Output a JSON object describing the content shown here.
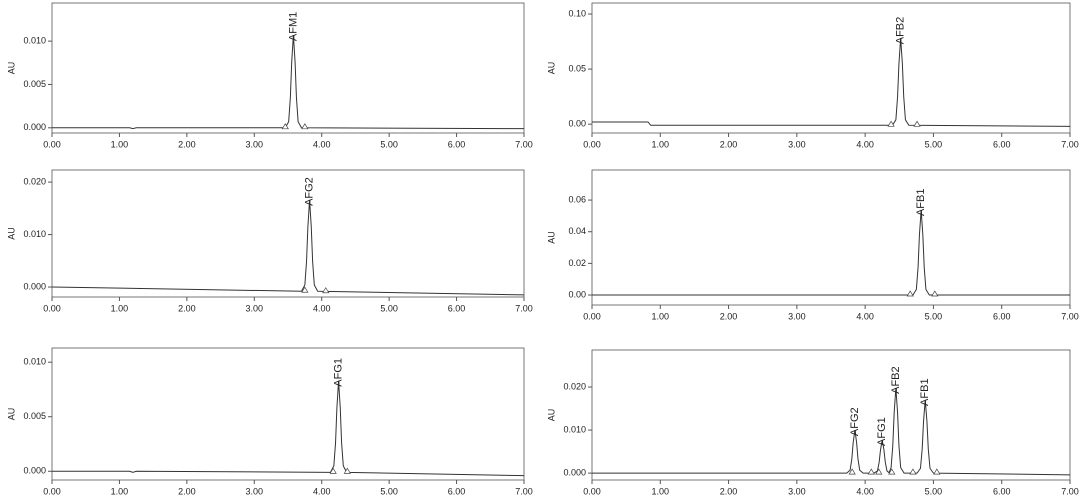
{
  "chart_data": [
    {
      "type": "line",
      "ylabel": "AU",
      "color": "#333333",
      "x": [
        0,
        1.15,
        1.2,
        1.25,
        3.46,
        3.51,
        3.535,
        3.555,
        3.58,
        3.605,
        3.625,
        3.65,
        3.7,
        7
      ],
      "values": [
        0,
        0,
        -0.0001,
        0,
        0,
        0.0007,
        0.0035,
        0.0076,
        0.0107,
        0.0076,
        0.0035,
        0.0007,
        0,
        -0.0001
      ],
      "xlim": [
        0,
        7
      ],
      "ylim": [
        -0.0006,
        0.0144
      ],
      "xticks": [
        {
          "value": 0,
          "label": "0.00"
        },
        {
          "value": 1,
          "label": "1.00"
        },
        {
          "value": 2,
          "label": "2.00"
        },
        {
          "value": 3,
          "label": "3.00"
        },
        {
          "value": 4,
          "label": "4.00"
        },
        {
          "value": 5,
          "label": "5.00"
        },
        {
          "value": 6,
          "label": "6.00"
        },
        {
          "value": 7,
          "label": "7.00"
        }
      ],
      "yticks": [
        {
          "value": 0,
          "label": "0.000"
        },
        {
          "value": 0.005,
          "label": "0.005"
        },
        {
          "value": 0.01,
          "label": "0.010"
        }
      ],
      "annotations": [
        {
          "text": "AFM1",
          "x": 3.58,
          "y": 0.0107
        }
      ],
      "integration_marks": [
        {
          "x": 3.46,
          "y": 0
        },
        {
          "x": 3.75,
          "y": 0
        }
      ]
    },
    {
      "type": "line",
      "ylabel": "AU",
      "color": "#333333",
      "x": [
        0,
        3.7,
        3.75,
        3.775,
        3.795,
        3.82,
        3.845,
        3.865,
        3.89,
        3.94,
        7
      ],
      "values": [
        0,
        -0.0008,
        0.0004,
        0.0049,
        0.0115,
        0.0166,
        0.0115,
        0.0049,
        0.0004,
        -0.0008,
        -0.0015
      ],
      "xlim": [
        0,
        7
      ],
      "ylim": [
        -0.0019,
        0.0223
      ],
      "xticks": [
        {
          "value": 0,
          "label": "0.00"
        },
        {
          "value": 1,
          "label": "1.00"
        },
        {
          "value": 2,
          "label": "2.00"
        },
        {
          "value": 3,
          "label": "3.00"
        },
        {
          "value": 4,
          "label": "4.00"
        },
        {
          "value": 5,
          "label": "5.00"
        },
        {
          "value": 6,
          "label": "6.00"
        },
        {
          "value": 7,
          "label": "7.00"
        }
      ],
      "yticks": [
        {
          "value": 0,
          "label": "0.000"
        },
        {
          "value": 0.01,
          "label": "0.010"
        },
        {
          "value": 0.02,
          "label": "0.020"
        }
      ],
      "annotations": [
        {
          "text": "AFG2",
          "x": 3.82,
          "y": 0.0166
        }
      ],
      "integration_marks": [
        {
          "x": 3.75,
          "y": -0.0008
        },
        {
          "x": 4.06,
          "y": -0.0009
        }
      ]
    },
    {
      "type": "line",
      "ylabel": "AU",
      "color": "#333333",
      "x": [
        0,
        1.15,
        1.2,
        1.25,
        4.13,
        4.18,
        4.205,
        4.225,
        4.25,
        4.275,
        4.295,
        4.32,
        4.37,
        7
      ],
      "values": [
        0,
        0,
        -0.0001,
        0,
        -0.0001,
        0.0005,
        0.0026,
        0.0058,
        0.0083,
        0.0058,
        0.0026,
        0.0005,
        -0.0001,
        -0.0004
      ],
      "xlim": [
        0,
        7
      ],
      "ylim": [
        -0.0008,
        0.0113
      ],
      "xticks": [
        {
          "value": 0,
          "label": "0.00"
        },
        {
          "value": 1,
          "label": "1.00"
        },
        {
          "value": 2,
          "label": "2.00"
        },
        {
          "value": 3,
          "label": "3.00"
        },
        {
          "value": 4,
          "label": "4.00"
        },
        {
          "value": 5,
          "label": "5.00"
        },
        {
          "value": 6,
          "label": "6.00"
        },
        {
          "value": 7,
          "label": "7.00"
        }
      ],
      "yticks": [
        {
          "value": 0,
          "label": "0.000"
        },
        {
          "value": 0.005,
          "label": "0.005"
        },
        {
          "value": 0.01,
          "label": "0.010"
        }
      ],
      "annotations": [
        {
          "text": "AFG1",
          "x": 4.25,
          "y": 0.0083
        }
      ],
      "integration_marks": [
        {
          "x": 4.17,
          "y": -0.0001
        },
        {
          "x": 4.38,
          "y": -0.0001
        }
      ]
    },
    {
      "type": "line",
      "ylabel": "AU",
      "color": "#333333",
      "x": [
        0,
        0.82,
        0.86,
        4.4,
        4.45,
        4.475,
        4.495,
        4.52,
        4.545,
        4.565,
        4.59,
        4.64,
        7
      ],
      "values": [
        0.002,
        0.002,
        -0.001,
        -0.001,
        0.004,
        0.025,
        0.055,
        0.078,
        0.055,
        0.025,
        0.004,
        -0.001,
        -0.002
      ],
      "xlim": [
        0,
        7
      ],
      "ylim": [
        -0.008,
        0.11
      ],
      "xticks": [
        {
          "value": 0,
          "label": "0.00"
        },
        {
          "value": 1,
          "label": "1.00"
        },
        {
          "value": 2,
          "label": "2.00"
        },
        {
          "value": 3,
          "label": "3.00"
        },
        {
          "value": 4,
          "label": "4.00"
        },
        {
          "value": 5,
          "label": "5.00"
        },
        {
          "value": 6,
          "label": "6.00"
        },
        {
          "value": 7,
          "label": "7.00"
        }
      ],
      "yticks": [
        {
          "value": 0,
          "label": "0.00"
        },
        {
          "value": 0.05,
          "label": "0.05"
        },
        {
          "value": 0.1,
          "label": "0.10"
        }
      ],
      "annotations": [
        {
          "text": "AFB2",
          "x": 4.52,
          "y": 0.078
        }
      ],
      "integration_marks": [
        {
          "x": 4.38,
          "y": -0.001
        },
        {
          "x": 4.76,
          "y": -0.001
        }
      ]
    },
    {
      "type": "line",
      "ylabel": "AU",
      "color": "#333333",
      "x": [
        0,
        4.7,
        4.75,
        4.775,
        4.795,
        4.82,
        4.845,
        4.865,
        4.89,
        4.94,
        7
      ],
      "values": [
        0,
        0,
        0.0035,
        0.0175,
        0.038,
        0.0537,
        0.038,
        0.0175,
        0.0035,
        0,
        0
      ],
      "xlim": [
        0,
        7
      ],
      "ylim": [
        -0.0063,
        0.079
      ],
      "xticks": [
        {
          "value": 0,
          "label": "0.00"
        },
        {
          "value": 1,
          "label": "1.00"
        },
        {
          "value": 2,
          "label": "2.00"
        },
        {
          "value": 3,
          "label": "3.00"
        },
        {
          "value": 4,
          "label": "4.00"
        },
        {
          "value": 5,
          "label": "5.00"
        },
        {
          "value": 6,
          "label": "6.00"
        },
        {
          "value": 7,
          "label": "7.00"
        }
      ],
      "yticks": [
        {
          "value": 0,
          "label": "0.00"
        },
        {
          "value": 0.02,
          "label": "0.02"
        },
        {
          "value": 0.04,
          "label": "0.04"
        },
        {
          "value": 0.06,
          "label": "0.06"
        }
      ],
      "annotations": [
        {
          "text": "AFB1",
          "x": 4.82,
          "y": 0.0537
        }
      ],
      "integration_marks": [
        {
          "x": 4.66,
          "y": 0
        },
        {
          "x": 5.02,
          "y": 0
        }
      ]
    },
    {
      "type": "line",
      "ylabel": "AU",
      "color": "#333333",
      "x": [
        0,
        3.73,
        3.78,
        3.805,
        3.825,
        3.85,
        3.875,
        3.895,
        3.92,
        3.97,
        4.13,
        4.18,
        4.205,
        4.225,
        4.25,
        4.275,
        4.295,
        4.32,
        4.35,
        4.38,
        4.405,
        4.425,
        4.45,
        4.475,
        4.495,
        4.52,
        4.57,
        4.76,
        4.81,
        4.835,
        4.855,
        4.88,
        4.905,
        4.925,
        4.95,
        5.0,
        7
      ],
      "values": [
        0,
        0,
        0.0007,
        0.0033,
        0.0071,
        0.01,
        0.0071,
        0.0033,
        0.0007,
        0,
        0,
        0.0005,
        0.0025,
        0.0054,
        0.0077,
        0.0054,
        0.0025,
        0.0005,
        0.0001,
        0.0013,
        0.0064,
        0.014,
        0.0198,
        0.014,
        0.0064,
        0.0013,
        0,
        0,
        0.0011,
        0.0055,
        0.012,
        0.017,
        0.012,
        0.0055,
        0.0011,
        0,
        -0.0004
      ],
      "xlim": [
        0,
        7
      ],
      "ylim": [
        -0.0016,
        0.0286
      ],
      "xticks": [
        {
          "value": 0,
          "label": "0.00"
        },
        {
          "value": 1,
          "label": "1.00"
        },
        {
          "value": 2,
          "label": "2.00"
        },
        {
          "value": 3,
          "label": "3.00"
        },
        {
          "value": 4,
          "label": "4.00"
        },
        {
          "value": 5,
          "label": "5.00"
        },
        {
          "value": 6,
          "label": "6.00"
        },
        {
          "value": 7,
          "label": "7.00"
        }
      ],
      "yticks": [
        {
          "value": 0,
          "label": "0.000"
        },
        {
          "value": 0.01,
          "label": "0.010"
        },
        {
          "value": 0.02,
          "label": "0.020"
        }
      ],
      "annotations": [
        {
          "text": "AFG2",
          "x": 3.85,
          "y": 0.01
        },
        {
          "text": "AFG1",
          "x": 4.25,
          "y": 0.0077
        },
        {
          "text": "AFB2",
          "x": 4.45,
          "y": 0.0198
        },
        {
          "text": "AFB1",
          "x": 4.88,
          "y": 0.017
        }
      ],
      "integration_marks": [
        {
          "x": 3.81,
          "y": 0
        },
        {
          "x": 4.09,
          "y": 0
        },
        {
          "x": 4.2,
          "y": 0
        },
        {
          "x": 4.39,
          "y": 0
        },
        {
          "x": 4.7,
          "y": 0
        },
        {
          "x": 5.05,
          "y": 0
        }
      ]
    }
  ]
}
